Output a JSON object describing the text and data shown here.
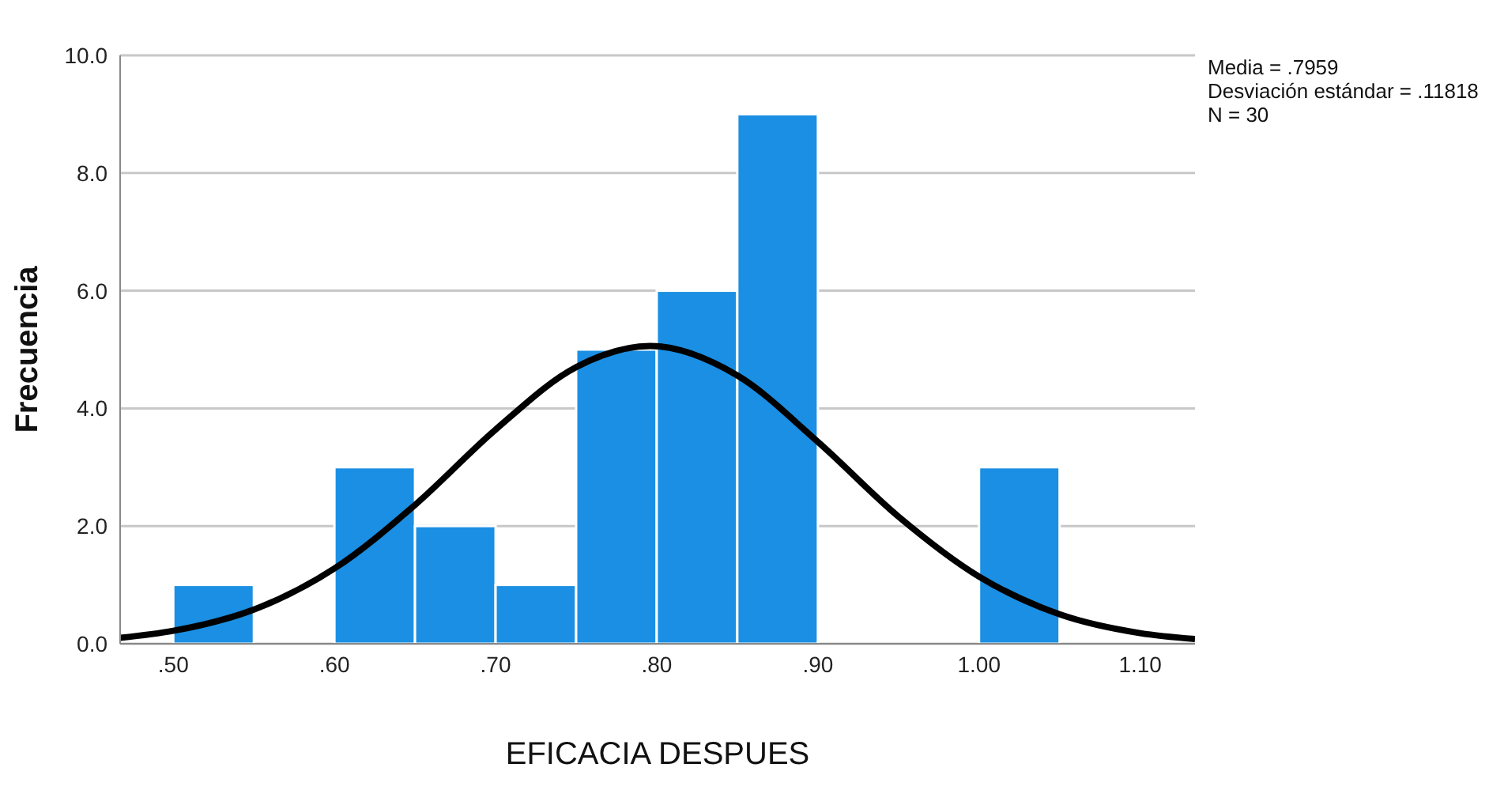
{
  "chart_data": {
    "type": "histogram",
    "xlabel": "EFICACIA DESPUES",
    "ylabel": "Frecuencia",
    "bins": [
      0.5,
      0.55,
      0.6,
      0.65,
      0.7,
      0.75,
      0.8,
      0.85,
      0.9,
      0.95,
      1.0,
      1.05
    ],
    "values": [
      1,
      0,
      3,
      2,
      1,
      5,
      6,
      9,
      0,
      0,
      3
    ],
    "color": "#1a8fe3",
    "series": [
      {
        "type": "line",
        "color": "#000000",
        "x": [
          0.467,
          0.5,
          0.55,
          0.6,
          0.65,
          0.7,
          0.75,
          0.7959,
          0.85,
          0.9,
          0.95,
          1.0,
          1.05,
          1.1,
          1.134
        ],
        "values": [
          0.1,
          0.22,
          0.58,
          1.28,
          2.36,
          3.64,
          4.7,
          5.06,
          4.56,
          3.43,
          2.16,
          1.14,
          0.5,
          0.18,
          0.08
        ]
      }
    ],
    "xlim": [
      0.467,
      1.134
    ],
    "xticks": [
      {
        "value": 0.5,
        "label": ".50"
      },
      {
        "value": 0.6,
        "label": ".60"
      },
      {
        "value": 0.7,
        "label": ".70"
      },
      {
        "value": 0.8,
        "label": ".80"
      },
      {
        "value": 0.9,
        "label": ".90"
      },
      {
        "value": 1.0,
        "label": "1.00"
      },
      {
        "value": 1.1,
        "label": "1.10"
      }
    ],
    "ylim": [
      0,
      10
    ],
    "yticks": [
      {
        "value": 0,
        "label": "0.0"
      },
      {
        "value": 2,
        "label": "2.0"
      },
      {
        "value": 4,
        "label": "4.0"
      },
      {
        "value": 6,
        "label": "6.0"
      },
      {
        "value": 8,
        "label": "8.0"
      },
      {
        "value": 10,
        "label": "10.0"
      }
    ],
    "grid": "y",
    "marker": "none",
    "annotations": [
      "Media = .7959",
      "Desviación estándar = .11818",
      "N = 30"
    ]
  }
}
